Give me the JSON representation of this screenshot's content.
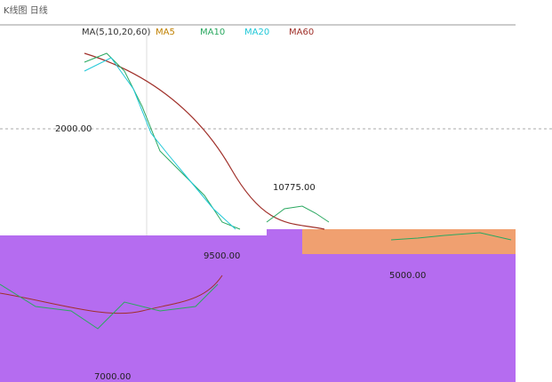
{
  "header": {
    "title": "K线图 日线"
  },
  "legend": {
    "label": "MA(5,10,20,60)",
    "items": [
      "MA5",
      "MA10",
      "MA20",
      "MA60"
    ]
  },
  "price_labels": [
    "10775.00",
    "2000.00",
    "9500.00",
    "5000.00",
    "7000.00"
  ]
}
